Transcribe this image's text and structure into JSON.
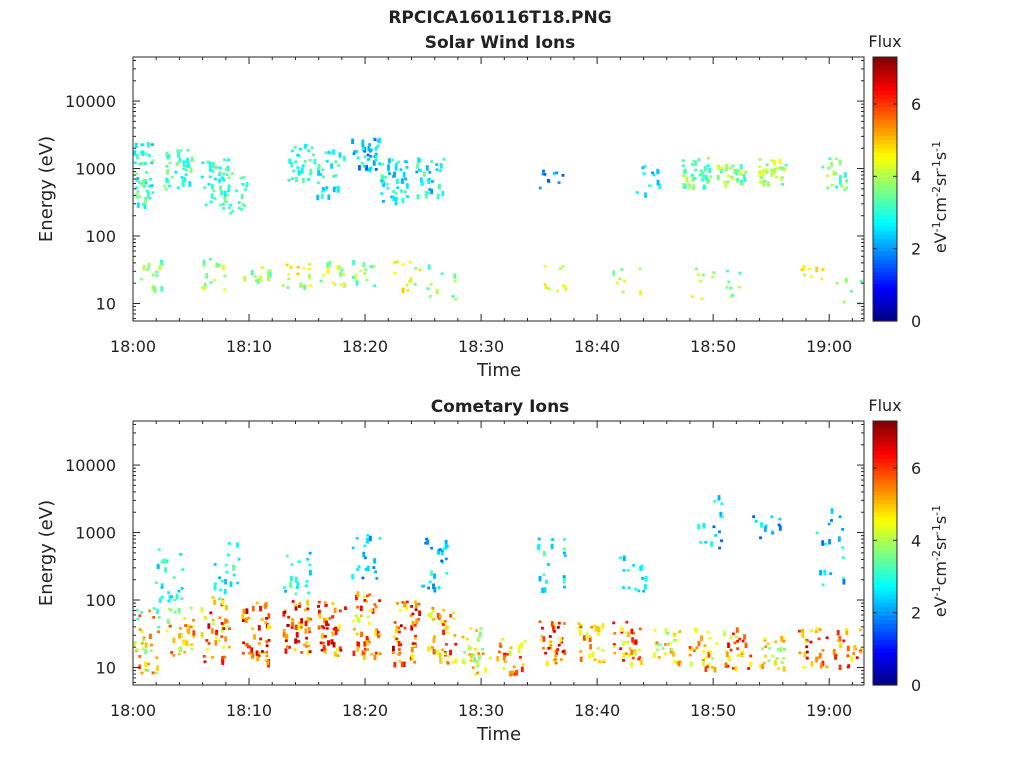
{
  "figure_title": "RPCICA160116T18.PNG",
  "chart_data": [
    {
      "type": "heatmap",
      "title": "Solar Wind Ions",
      "xlabel": "Time",
      "ylabel": "Energy (eV)",
      "xticks": [
        "18:00",
        "18:10",
        "18:20",
        "18:30",
        "18:40",
        "18:50",
        "19:00"
      ],
      "xlim": [
        "18:00",
        "19:03"
      ],
      "yscale": "log",
      "yticks": [
        "10",
        "100",
        "1000",
        "10000"
      ],
      "ylim": [
        5.5,
        45000
      ],
      "colorbar": {
        "title": "Flux",
        "label": "eV-1cm-2sr-1s-1",
        "ticks": [
          "0",
          "2",
          "4",
          "6"
        ],
        "range": [
          0,
          7.3
        ],
        "colormap": "jet"
      },
      "clusters": [
        {
          "t": 0.5,
          "e": [
            300,
            2500
          ],
          "z": [
            2.2,
            3.8
          ],
          "n": 60
        },
        {
          "t": 3.8,
          "e": [
            500,
            2000
          ],
          "z": [
            2.5,
            3.8
          ],
          "n": 40
        },
        {
          "t": 7.0,
          "e": [
            300,
            1500
          ],
          "z": [
            2.6,
            3.8
          ],
          "n": 40
        },
        {
          "t": 8.5,
          "e": [
            200,
            900
          ],
          "z": [
            2.8,
            3.6
          ],
          "n": 25
        },
        {
          "t": 14.5,
          "e": [
            700,
            2500
          ],
          "z": [
            2.5,
            3.5
          ],
          "n": 30
        },
        {
          "t": 17.0,
          "e": [
            400,
            2000
          ],
          "z": [
            2.2,
            3.5
          ],
          "n": 30
        },
        {
          "t": 20.0,
          "e": [
            1000,
            3000
          ],
          "z": [
            1.5,
            3.2
          ],
          "n": 40
        },
        {
          "t": 22.5,
          "e": [
            300,
            1500
          ],
          "z": [
            2.0,
            3.5
          ],
          "n": 45
        },
        {
          "t": 25.5,
          "e": [
            400,
            1500
          ],
          "z": [
            2.0,
            3.5
          ],
          "n": 30
        },
        {
          "t": 36.0,
          "e": [
            500,
            1000
          ],
          "z": [
            1.5,
            2.5
          ],
          "n": 10
        },
        {
          "t": 44.5,
          "e": [
            400,
            1200
          ],
          "z": [
            2.0,
            3.0
          ],
          "n": 12
        },
        {
          "t": 48.5,
          "e": [
            500,
            1500
          ],
          "z": [
            2.8,
            4.2
          ],
          "n": 40
        },
        {
          "t": 51.5,
          "e": [
            600,
            1200
          ],
          "z": [
            3.0,
            4.5
          ],
          "n": 30
        },
        {
          "t": 55.0,
          "e": [
            600,
            1500
          ],
          "z": [
            3.2,
            4.6
          ],
          "n": 35
        },
        {
          "t": 60.5,
          "e": [
            500,
            1500
          ],
          "z": [
            2.8,
            4.2
          ],
          "n": 20
        },
        {
          "t": 1.5,
          "e": [
            15,
            45
          ],
          "z": [
            2.8,
            4.2
          ],
          "n": 14
        },
        {
          "t": 7.0,
          "e": [
            15,
            50
          ],
          "z": [
            3.2,
            4.6
          ],
          "n": 16
        },
        {
          "t": 10.5,
          "e": [
            18,
            45
          ],
          "z": [
            3.0,
            4.4
          ],
          "n": 12
        },
        {
          "t": 14.0,
          "e": [
            18,
            45
          ],
          "z": [
            3.5,
            5.0
          ],
          "n": 16
        },
        {
          "t": 17.0,
          "e": [
            18,
            45
          ],
          "z": [
            3.2,
            4.6
          ],
          "n": 14
        },
        {
          "t": 20.0,
          "e": [
            18,
            45
          ],
          "z": [
            3.0,
            4.5
          ],
          "n": 12
        },
        {
          "t": 23.5,
          "e": [
            15,
            45
          ],
          "z": [
            3.5,
            5.0
          ],
          "n": 14
        },
        {
          "t": 26.5,
          "e": [
            12,
            40
          ],
          "z": [
            3.0,
            4.3
          ],
          "n": 10
        },
        {
          "t": 36.0,
          "e": [
            15,
            45
          ],
          "z": [
            3.5,
            4.8
          ],
          "n": 10
        },
        {
          "t": 42.5,
          "e": [
            12,
            35
          ],
          "z": [
            3.2,
            4.6
          ],
          "n": 8
        },
        {
          "t": 49.0,
          "e": [
            12,
            35
          ],
          "z": [
            3.2,
            4.6
          ],
          "n": 8
        },
        {
          "t": 52.0,
          "e": [
            12,
            35
          ],
          "z": [
            3.0,
            4.4
          ],
          "n": 8
        },
        {
          "t": 58.5,
          "e": [
            15,
            40
          ],
          "z": [
            4.0,
            5.0
          ],
          "n": 8
        },
        {
          "t": 61.5,
          "e": [
            10,
            25
          ],
          "z": [
            3.0,
            4.4
          ],
          "n": 6
        }
      ]
    },
    {
      "type": "heatmap",
      "title": "Cometary Ions",
      "xlabel": "Time",
      "ylabel": "Energy (eV)",
      "xticks": [
        "18:00",
        "18:10",
        "18:20",
        "18:30",
        "18:40",
        "18:50",
        "19:00"
      ],
      "xlim": [
        "18:00",
        "19:03"
      ],
      "yscale": "log",
      "yticks": [
        "10",
        "100",
        "1000",
        "10000"
      ],
      "ylim": [
        5.5,
        45000
      ],
      "colorbar": {
        "title": "Flux",
        "label": "eV-1cm-2sr-1s-1",
        "ticks": [
          "0",
          "2",
          "4",
          "6"
        ],
        "range": [
          0,
          7.3
        ],
        "colormap": "jet"
      },
      "clusters": [
        {
          "t": 1.0,
          "e": [
            8,
            80
          ],
          "z": [
            3.0,
            6.0
          ],
          "n": 40
        },
        {
          "t": 4.0,
          "e": [
            12,
            80
          ],
          "z": [
            3.5,
            6.0
          ],
          "n": 35
        },
        {
          "t": 7.0,
          "e": [
            12,
            120
          ],
          "z": [
            4.0,
            6.8
          ],
          "n": 45
        },
        {
          "t": 10.5,
          "e": [
            12,
            100
          ],
          "z": [
            4.5,
            7.0
          ],
          "n": 50
        },
        {
          "t": 14.0,
          "e": [
            15,
            100
          ],
          "z": [
            4.5,
            7.0
          ],
          "n": 50
        },
        {
          "t": 17.0,
          "e": [
            15,
            100
          ],
          "z": [
            4.5,
            7.0
          ],
          "n": 50
        },
        {
          "t": 20.0,
          "e": [
            15,
            150
          ],
          "z": [
            4.0,
            6.5
          ],
          "n": 50
        },
        {
          "t": 23.5,
          "e": [
            12,
            100
          ],
          "z": [
            4.5,
            7.0
          ],
          "n": 50
        },
        {
          "t": 26.5,
          "e": [
            12,
            80
          ],
          "z": [
            4.0,
            6.5
          ],
          "n": 45
        },
        {
          "t": 29.5,
          "e": [
            8,
            50
          ],
          "z": [
            3.5,
            5.5
          ],
          "n": 30
        },
        {
          "t": 32.5,
          "e": [
            8,
            30
          ],
          "z": [
            4.0,
            6.5
          ],
          "n": 25
        },
        {
          "t": 36.0,
          "e": [
            12,
            50
          ],
          "z": [
            4.5,
            7.0
          ],
          "n": 35
        },
        {
          "t": 39.5,
          "e": [
            12,
            50
          ],
          "z": [
            4.0,
            6.0
          ],
          "n": 30
        },
        {
          "t": 42.5,
          "e": [
            12,
            50
          ],
          "z": [
            4.0,
            6.5
          ],
          "n": 35
        },
        {
          "t": 46.0,
          "e": [
            12,
            40
          ],
          "z": [
            3.5,
            5.5
          ],
          "n": 30
        },
        {
          "t": 49.0,
          "e": [
            10,
            40
          ],
          "z": [
            4.0,
            6.0
          ],
          "n": 30
        },
        {
          "t": 52.0,
          "e": [
            10,
            40
          ],
          "z": [
            4.0,
            6.5
          ],
          "n": 30
        },
        {
          "t": 55.0,
          "e": [
            10,
            30
          ],
          "z": [
            3.5,
            5.5
          ],
          "n": 25
        },
        {
          "t": 58.5,
          "e": [
            10,
            40
          ],
          "z": [
            4.5,
            7.0
          ],
          "n": 30
        },
        {
          "t": 61.5,
          "e": [
            10,
            40
          ],
          "z": [
            4.5,
            6.5
          ],
          "n": 25
        },
        {
          "t": 3.0,
          "e": [
            100,
            600
          ],
          "z": [
            2.2,
            3.5
          ],
          "n": 25
        },
        {
          "t": 8.0,
          "e": [
            100,
            800
          ],
          "z": [
            2.2,
            3.5
          ],
          "n": 20
        },
        {
          "t": 14.0,
          "e": [
            100,
            600
          ],
          "z": [
            2.0,
            3.5
          ],
          "n": 20
        },
        {
          "t": 20.0,
          "e": [
            150,
            1000
          ],
          "z": [
            1.5,
            3.0
          ],
          "n": 20
        },
        {
          "t": 26.0,
          "e": [
            150,
            900
          ],
          "z": [
            1.5,
            3.2
          ],
          "n": 25
        },
        {
          "t": 36.0,
          "e": [
            150,
            900
          ],
          "z": [
            2.0,
            3.5
          ],
          "n": 20
        },
        {
          "t": 43.0,
          "e": [
            120,
            500
          ],
          "z": [
            2.2,
            3.5
          ],
          "n": 15
        },
        {
          "t": 49.5,
          "e": [
            600,
            4000
          ],
          "z": [
            1.5,
            3.0
          ],
          "n": 15
        },
        {
          "t": 54.5,
          "e": [
            600,
            2000
          ],
          "z": [
            1.5,
            3.0
          ],
          "n": 12
        },
        {
          "t": 60.0,
          "e": [
            150,
            3000
          ],
          "z": [
            1.5,
            3.2
          ],
          "n": 18
        }
      ]
    }
  ]
}
